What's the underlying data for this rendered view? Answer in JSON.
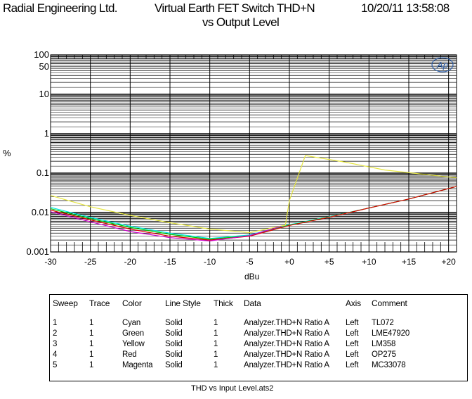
{
  "header": {
    "company": "Radial Engineering Ltd.",
    "title_line1": "Virtual Earth FET Switch THD+N",
    "title_line2": "vs Output Level",
    "timestamp": "10/20/11 13:58:08"
  },
  "logo_text": "Ap",
  "chart_data": {
    "type": "line",
    "title": "Virtual Earth FET Switch THD+N vs Output Level",
    "xlabel": "dBu",
    "ylabel": "%",
    "xlim": [
      -30,
      21
    ],
    "ylim": [
      0.001,
      100
    ],
    "yscale": "log",
    "grid": true,
    "x_ticks": [
      "-30",
      "-25",
      "-20",
      "-15",
      "-10",
      "-5",
      "+0",
      "+5",
      "+10",
      "+15",
      "+20"
    ],
    "x_tick_values": [
      -30,
      -25,
      -20,
      -15,
      -10,
      -5,
      0,
      5,
      10,
      15,
      20
    ],
    "y_ticks": [
      "100",
      "50",
      "10",
      "1",
      "0.1",
      "0.01",
      "0.001"
    ],
    "y_tick_values": [
      100,
      50,
      10,
      1,
      0.1,
      0.01,
      0.001
    ],
    "series": [
      {
        "sweep": "1",
        "color": "#00e5e5",
        "x": [
          -30,
          -25,
          -20,
          -15,
          -10,
          -5,
          0,
          5,
          10,
          15,
          21
        ],
        "y": [
          0.0135,
          0.0075,
          0.0045,
          0.003,
          0.0022,
          0.0027,
          0.0049,
          0.0078,
          0.013,
          0.022,
          0.046
        ]
      },
      {
        "sweep": "2",
        "color": "#00c800",
        "x": [
          -30,
          -25,
          -20,
          -15,
          -10,
          -5,
          0,
          5,
          10,
          15,
          21
        ],
        "y": [
          0.0125,
          0.007,
          0.0042,
          0.0028,
          0.0021,
          0.0026,
          0.0048,
          0.0077,
          0.013,
          0.022,
          0.046
        ]
      },
      {
        "sweep": "3",
        "color": "#e6e640",
        "x": [
          -30,
          -25,
          -20,
          -15,
          -10,
          -5,
          -0.5,
          0,
          2,
          7,
          12,
          21
        ],
        "y": [
          0.027,
          0.014,
          0.0085,
          0.0055,
          0.0038,
          0.0031,
          0.0048,
          0.02,
          0.28,
          0.19,
          0.12,
          0.076
        ]
      },
      {
        "sweep": "4",
        "color": "#e00000",
        "x": [
          -30,
          -25,
          -20,
          -15,
          -10,
          -5,
          0,
          5,
          10,
          15,
          21
        ],
        "y": [
          0.0115,
          0.0065,
          0.0038,
          0.0025,
          0.002,
          0.0025,
          0.0047,
          0.0076,
          0.013,
          0.022,
          0.046
        ]
      },
      {
        "sweep": "5",
        "color": "#cc00cc",
        "x": [
          -30,
          -25,
          -20,
          -15,
          -10,
          -5,
          -1
        ],
        "y": [
          0.0105,
          0.0058,
          0.0033,
          0.0023,
          0.0019,
          0.0026,
          0.0045
        ]
      }
    ]
  },
  "legend": {
    "headers": [
      "Sweep",
      "Trace",
      "Color",
      "Line Style",
      "Thick",
      "Data",
      "Axis",
      "Comment"
    ],
    "rows": [
      [
        "1",
        "1",
        "Cyan",
        "Solid",
        "1",
        "Analyzer.THD+N Ratio A",
        "Left",
        "TL072"
      ],
      [
        "2",
        "1",
        "Green",
        "Solid",
        "1",
        "Analyzer.THD+N Ratio A",
        "Left",
        "LME47920"
      ],
      [
        "3",
        "1",
        "Yellow",
        "Solid",
        "1",
        "Analyzer.THD+N Ratio A",
        "Left",
        "LM358"
      ],
      [
        "4",
        "1",
        "Red",
        "Solid",
        "1",
        "Analyzer.THD+N Ratio A",
        "Left",
        "OP275"
      ],
      [
        "5",
        "1",
        "Magenta",
        "Solid",
        "1",
        "Analyzer.THD+N Ratio A",
        "Left",
        "MC33078"
      ]
    ]
  },
  "footer": "THD vs Input Level.ats2"
}
